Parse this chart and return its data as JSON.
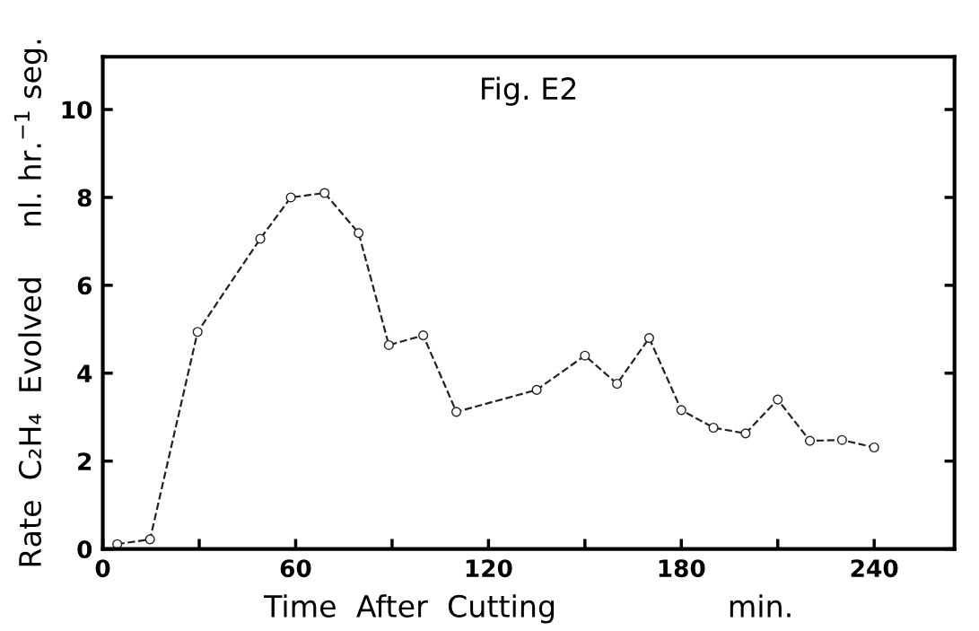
{
  "chart_data": {
    "type": "line",
    "title": "Fig. E2",
    "xlabel": "Time  After  Cutting                  min.",
    "ylabel": "Rate  C₂H₄  Evolved     nl. hr.$^{−1}$ seg.",
    "x": [
      4.5,
      14.7,
      29.5,
      49,
      58.5,
      69,
      79.6,
      89,
      99.7,
      110,
      135,
      150,
      160,
      170,
      180,
      190,
      200,
      210,
      220,
      230,
      240
    ],
    "series": [
      {
        "color": "#222222",
        "values": [
          0.11,
          0.22,
          4.94,
          7.06,
          8.0,
          8.1,
          7.19,
          4.64,
          4.86,
          3.12,
          3.62,
          4.4,
          3.76,
          4.8,
          3.16,
          2.76,
          2.63,
          3.4,
          2.46,
          2.48,
          2.31
        ]
      }
    ],
    "xlim": [
      0,
      265
    ],
    "ylim": [
      0,
      11.2
    ],
    "xticks": [
      0,
      {
        "value": 30,
        "label": null
      },
      60,
      {
        "value": 90,
        "label": null
      },
      120,
      {
        "value": 150,
        "label": null
      },
      180,
      {
        "value": 210,
        "label": null
      },
      240
    ],
    "yticks": [
      0,
      2,
      4,
      6,
      8,
      10
    ],
    "marker": "circle",
    "line_style": "dashed",
    "grid": false,
    "legend": false
  }
}
